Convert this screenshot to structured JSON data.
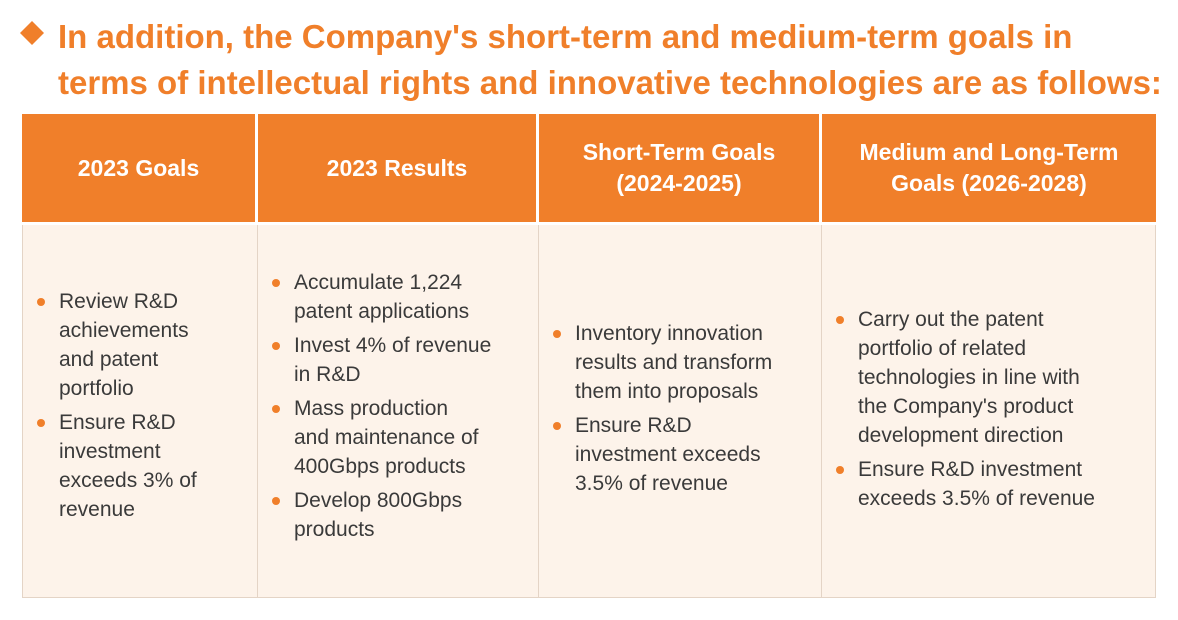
{
  "heading": {
    "line1": "In addition, the Company's short-term and medium-term goals in",
    "line2": "terms of intellectual rights and innovative technologies are as follows:"
  },
  "colors": {
    "accent": "#f07f2a",
    "cell_background": "#fdf3ea",
    "text": "#3a3a3a"
  },
  "table": {
    "columns": [
      {
        "header_lines": [
          "2023 Goals"
        ],
        "items": [
          [
            "Review R&D",
            "achievements",
            "and patent",
            "portfolio"
          ],
          [
            "Ensure R&D",
            "investment",
            "exceeds 3% of",
            "revenue"
          ]
        ]
      },
      {
        "header_lines": [
          "2023 Results"
        ],
        "items": [
          [
            "Accumulate 1,224",
            "patent applications"
          ],
          [
            "Invest 4% of revenue",
            "in R&D"
          ],
          [
            "Mass production",
            "and maintenance of",
            "400Gbps products"
          ],
          [
            "Develop 800Gbps",
            "products"
          ]
        ]
      },
      {
        "header_lines": [
          "Short-Term Goals",
          "(2024-2025)"
        ],
        "items": [
          [
            "Inventory innovation",
            "results and transform",
            "them into proposals"
          ],
          [
            "Ensure R&D",
            "investment exceeds",
            "3.5% of revenue"
          ]
        ]
      },
      {
        "header_lines": [
          "Medium and Long-Term",
          "Goals (2026-2028)"
        ],
        "items": [
          [
            "Carry out the patent",
            "portfolio of related",
            "technologies in line with",
            "the Company's product",
            "development direction"
          ],
          [
            "Ensure R&D investment",
            "exceeds 3.5% of revenue"
          ]
        ]
      }
    ]
  }
}
